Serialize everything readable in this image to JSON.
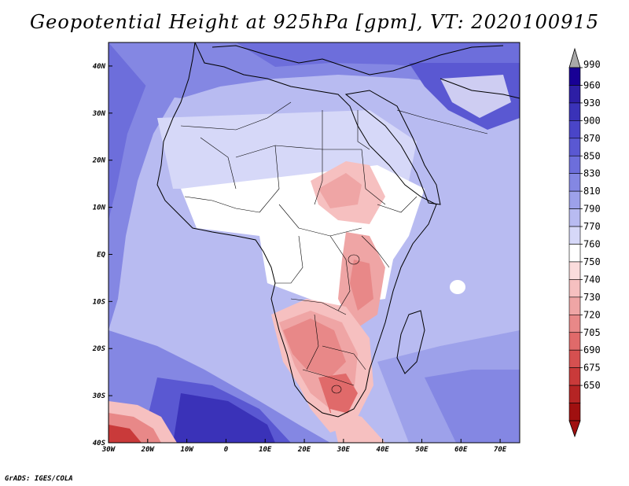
{
  "title": "Geopotential Height at 925hPa [gpm], VT: 2020100915",
  "credit": "GrADS: IGES/COLA",
  "map": {
    "variable": "Geopotential Height",
    "level": "925hPa",
    "units": "gpm",
    "valid_time": "2020100915",
    "extent": {
      "lon_min": -30,
      "lon_max": 75,
      "lat_min": -40,
      "lat_max": 45
    },
    "lon_ticks": [
      {
        "lon": -30,
        "label": "30W"
      },
      {
        "lon": -20,
        "label": "20W"
      },
      {
        "lon": -10,
        "label": "10W"
      },
      {
        "lon": 0,
        "label": "0"
      },
      {
        "lon": 10,
        "label": "10E"
      },
      {
        "lon": 20,
        "label": "20E"
      },
      {
        "lon": 30,
        "label": "30E"
      },
      {
        "lon": 40,
        "label": "40E"
      },
      {
        "lon": 50,
        "label": "50E"
      },
      {
        "lon": 60,
        "label": "60E"
      },
      {
        "lon": 70,
        "label": "70E"
      }
    ],
    "lat_ticks": [
      {
        "lat": 40,
        "label": "40N"
      },
      {
        "lat": 30,
        "label": "30N"
      },
      {
        "lat": 20,
        "label": "20N"
      },
      {
        "lat": 10,
        "label": "10N"
      },
      {
        "lat": 0,
        "label": "EQ"
      },
      {
        "lat": -10,
        "label": "10S"
      },
      {
        "lat": -20,
        "label": "20S"
      },
      {
        "lat": -30,
        "label": "30S"
      },
      {
        "lat": -40,
        "label": "40S"
      }
    ]
  },
  "colorbar": {
    "levels": [
      "990",
      "960",
      "930",
      "900",
      "870",
      "850",
      "830",
      "810",
      "790",
      "770",
      "760",
      "750",
      "740",
      "730",
      "720",
      "705",
      "690",
      "675",
      "650"
    ],
    "colors": [
      "#180095",
      "#2d1ea5",
      "#3a32b8",
      "#4a45c8",
      "#5a58d2",
      "#6d6edb",
      "#8487e3",
      "#9da1ea",
      "#b8bbf1",
      "#d6d8f8",
      "#ffffff",
      "#fbdcdc",
      "#f6c0c0",
      "#efa5a5",
      "#e88888",
      "#e06a6a",
      "#d65050",
      "#c93a3a",
      "#b52424",
      "#a01010"
    ],
    "over_color": "#a9a9a9",
    "under_color": "#a01010"
  }
}
